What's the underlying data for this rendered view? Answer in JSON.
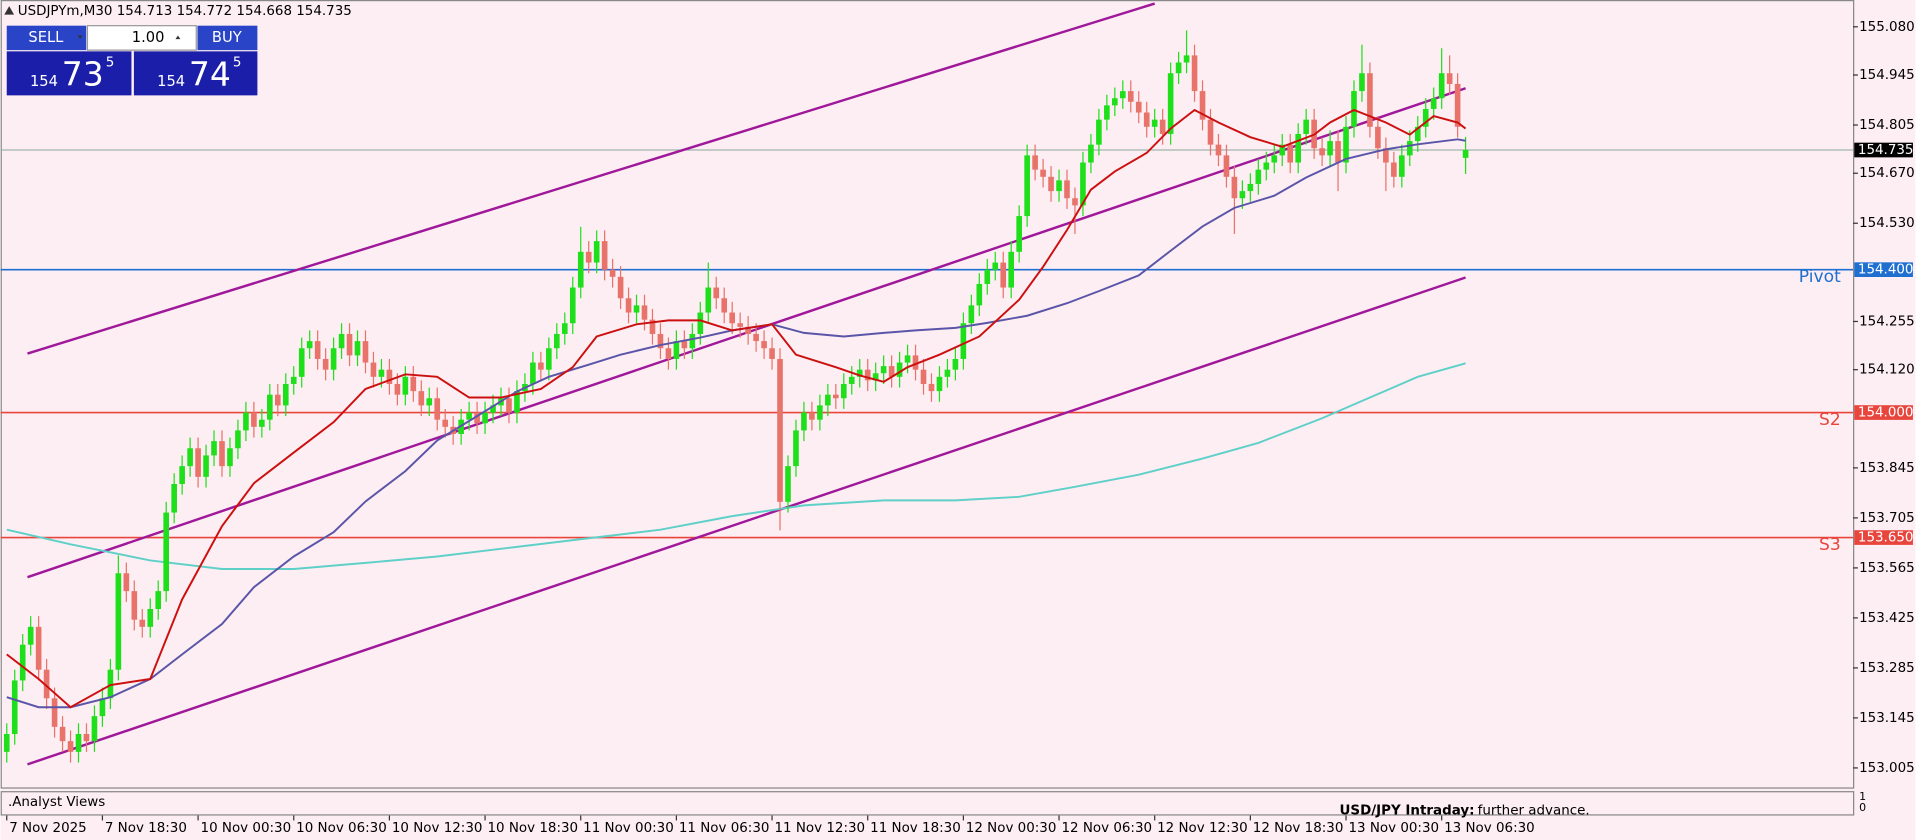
{
  "chart_data": {
    "type": "candlestick",
    "symbol_info": "USDJPYm,M30  154.713 154.772 154.668 154.735",
    "trade_panel": {
      "sell_label": "SELL",
      "buy_label": "BUY",
      "volume": "1.00",
      "bid": {
        "big": "154",
        "main": "73",
        "small": "5"
      },
      "ask": {
        "big": "154",
        "main": "74",
        "small": "5"
      }
    },
    "xlim": [
      -0.77,
      231.6
    ],
    "ylim": [
      152.947,
      155.155
    ],
    "xticks": [
      {
        "value": 0,
        "label": "7 Nov 2025"
      },
      {
        "value": 12,
        "label": "7 Nov 18:30"
      },
      {
        "value": 24,
        "label": "10 Nov 00:30"
      },
      {
        "value": 36,
        "label": "10 Nov 06:30"
      },
      {
        "value": 48,
        "label": "10 Nov 12:30"
      },
      {
        "value": 60,
        "label": "10 Nov 18:30"
      },
      {
        "value": 72,
        "label": "11 Nov 00:30"
      },
      {
        "value": 84,
        "label": "11 Nov 06:30"
      },
      {
        "value": 96,
        "label": "11 Nov 12:30"
      },
      {
        "value": 108,
        "label": "11 Nov 18:30"
      },
      {
        "value": 120,
        "label": "12 Nov 00:30"
      },
      {
        "value": 132,
        "label": "12 Nov 06:30"
      },
      {
        "value": 144,
        "label": "12 Nov 12:30"
      },
      {
        "value": 156,
        "label": "12 Nov 18:30"
      },
      {
        "value": 168,
        "label": "13 Nov 00:30"
      },
      {
        "value": 180,
        "label": "13 Nov 06:30"
      }
    ],
    "yticks": [
      {
        "value": 155.08,
        "label": "155.080"
      },
      154.945,
      154.805,
      {
        "value": 154.67,
        "label": "154.670"
      },
      {
        "value": 154.53,
        "label": "154.530"
      },
      154.255,
      {
        "value": 154.12,
        "label": "154.120"
      },
      153.845,
      153.705,
      153.565,
      153.425,
      153.285,
      153.145,
      153.005
    ],
    "candles": {
      "up_color": "#1ee01a",
      "down_color": "#e8736a",
      "open": [
        153.05,
        153.1,
        153.25,
        153.35,
        153.4,
        153.28,
        153.2,
        153.12,
        153.08,
        153.05,
        153.1,
        153.08,
        153.15,
        153.2,
        153.28,
        153.55,
        153.5,
        153.42,
        153.4,
        153.45,
        153.5,
        153.72,
        153.8,
        153.85,
        153.9,
        153.82,
        153.88,
        153.92,
        153.85,
        153.9,
        153.95,
        154.0,
        153.96,
        153.98,
        154.05,
        154.02,
        154.08,
        154.1,
        154.18,
        154.2,
        154.15,
        154.12,
        154.18,
        154.22,
        154.16,
        154.2,
        154.14,
        154.1,
        154.12,
        154.08,
        154.05,
        154.1,
        154.06,
        154.02,
        154.04,
        153.98,
        153.96,
        153.94,
        153.98,
        154.0,
        153.97,
        154.0,
        154.02,
        154.04,
        154.0,
        154.06,
        154.08,
        154.14,
        154.12,
        154.18,
        154.22,
        154.25,
        154.35,
        154.45,
        154.42,
        154.48,
        154.4,
        154.38,
        154.32,
        154.28,
        154.3,
        154.26,
        154.22,
        154.18,
        154.15,
        154.2,
        154.18,
        154.22,
        154.28,
        154.35,
        154.32,
        154.28,
        154.25,
        154.24,
        154.22,
        154.2,
        154.18,
        154.15,
        153.75,
        153.85,
        153.95,
        154.0,
        153.98,
        154.02,
        154.05,
        154.04,
        154.08,
        154.1,
        154.12,
        154.09,
        154.11,
        154.13,
        154.1,
        154.14,
        154.16,
        154.12,
        154.08,
        154.06,
        154.1,
        154.12,
        154.15,
        154.25,
        154.3,
        154.36,
        154.4,
        154.42,
        154.35,
        154.45,
        154.55,
        154.72,
        154.68,
        154.66,
        154.62,
        154.65,
        154.6,
        154.58,
        154.7,
        154.75,
        154.82,
        154.86,
        154.88,
        154.9,
        154.87,
        154.84,
        154.8,
        154.82,
        154.78,
        154.95,
        154.98,
        155.0,
        154.9,
        154.82,
        154.75,
        154.72,
        154.66,
        154.6,
        154.62,
        154.64,
        154.68,
        154.7,
        154.72,
        154.75,
        154.7,
        154.78,
        154.82,
        154.74,
        154.72,
        154.76,
        154.7,
        154.8,
        154.9,
        154.95,
        154.8,
        154.74,
        154.7,
        154.66,
        154.72,
        154.76,
        154.8,
        154.85,
        154.88,
        154.95,
        154.92,
        154.713
      ],
      "high": [
        153.13,
        153.28,
        153.38,
        153.43,
        153.43,
        153.31,
        153.23,
        153.15,
        153.11,
        153.13,
        153.13,
        153.18,
        153.23,
        153.31,
        153.6,
        153.58,
        153.53,
        153.45,
        153.48,
        153.53,
        153.75,
        153.83,
        153.88,
        153.93,
        153.93,
        153.91,
        153.95,
        153.95,
        153.93,
        153.98,
        154.03,
        154.03,
        154.01,
        154.08,
        154.08,
        154.11,
        154.13,
        154.21,
        154.23,
        154.23,
        154.18,
        154.21,
        154.25,
        154.25,
        154.23,
        154.23,
        154.17,
        154.15,
        154.15,
        154.11,
        154.13,
        154.13,
        154.09,
        154.07,
        154.07,
        154.01,
        153.99,
        154.01,
        154.03,
        154.03,
        154.03,
        154.05,
        154.07,
        154.07,
        154.09,
        154.11,
        154.17,
        154.17,
        154.21,
        154.25,
        154.28,
        154.38,
        154.52,
        154.48,
        154.51,
        154.51,
        154.43,
        154.41,
        154.35,
        154.33,
        154.33,
        154.29,
        154.25,
        154.21,
        154.23,
        154.23,
        154.25,
        154.31,
        154.42,
        154.38,
        154.35,
        154.31,
        154.28,
        154.27,
        154.25,
        154.23,
        154.21,
        154.18,
        153.88,
        153.98,
        154.03,
        154.03,
        154.05,
        154.08,
        154.08,
        154.11,
        154.13,
        154.15,
        154.15,
        154.14,
        154.16,
        154.16,
        154.17,
        154.19,
        154.19,
        154.15,
        154.11,
        154.13,
        154.15,
        154.18,
        154.28,
        154.33,
        154.39,
        154.43,
        154.45,
        154.45,
        154.48,
        154.58,
        154.75,
        154.75,
        154.71,
        154.69,
        154.68,
        154.68,
        154.63,
        154.73,
        154.78,
        154.85,
        154.89,
        154.91,
        154.93,
        154.93,
        154.9,
        154.87,
        154.85,
        154.85,
        154.98,
        155.01,
        155.07,
        155.03,
        154.93,
        154.85,
        154.78,
        154.75,
        154.69,
        154.65,
        154.67,
        154.71,
        154.73,
        154.75,
        154.78,
        154.78,
        154.81,
        154.85,
        154.85,
        154.77,
        154.79,
        154.79,
        154.83,
        154.93,
        155.03,
        154.98,
        154.83,
        154.77,
        154.73,
        154.75,
        154.79,
        154.83,
        154.88,
        154.91,
        155.02,
        155.0,
        154.95,
        154.772
      ],
      "low": [
        153.02,
        153.07,
        153.22,
        153.32,
        153.25,
        153.17,
        153.09,
        153.05,
        153.02,
        153.02,
        153.05,
        153.05,
        153.12,
        153.17,
        153.25,
        153.47,
        153.39,
        153.37,
        153.37,
        153.42,
        153.47,
        153.69,
        153.77,
        153.82,
        153.79,
        153.79,
        153.85,
        153.82,
        153.82,
        153.87,
        153.92,
        153.93,
        153.93,
        153.95,
        153.99,
        153.99,
        154.05,
        154.07,
        154.15,
        154.12,
        154.09,
        154.09,
        154.15,
        154.13,
        154.13,
        154.11,
        154.07,
        154.07,
        154.05,
        154.02,
        154.02,
        154.03,
        153.99,
        153.99,
        153.95,
        153.93,
        153.91,
        153.91,
        153.95,
        153.94,
        153.94,
        153.97,
        153.99,
        153.97,
        153.97,
        154.03,
        154.05,
        154.09,
        154.09,
        154.15,
        154.19,
        154.22,
        154.32,
        154.39,
        154.39,
        154.37,
        154.35,
        154.29,
        154.25,
        154.25,
        154.23,
        154.19,
        154.15,
        154.12,
        154.12,
        154.15,
        154.15,
        154.19,
        154.25,
        154.29,
        154.25,
        154.22,
        154.21,
        154.19,
        154.17,
        154.15,
        154.12,
        153.67,
        153.72,
        153.82,
        153.92,
        153.95,
        153.95,
        153.99,
        154.01,
        154.01,
        154.05,
        154.07,
        154.06,
        154.06,
        154.08,
        154.07,
        154.07,
        154.11,
        154.09,
        154.05,
        154.03,
        154.03,
        154.07,
        154.09,
        154.12,
        154.22,
        154.27,
        154.33,
        154.37,
        154.32,
        154.32,
        154.42,
        154.52,
        154.65,
        154.63,
        154.59,
        154.59,
        154.57,
        154.5,
        154.55,
        154.67,
        154.72,
        154.79,
        154.83,
        154.85,
        154.84,
        154.81,
        154.77,
        154.77,
        154.75,
        154.75,
        154.92,
        154.95,
        154.87,
        154.79,
        154.72,
        154.69,
        154.63,
        154.5,
        154.57,
        154.59,
        154.61,
        154.65,
        154.67,
        154.69,
        154.67,
        154.67,
        154.75,
        154.71,
        154.69,
        154.69,
        154.62,
        154.67,
        154.77,
        154.87,
        154.77,
        154.71,
        154.62,
        154.63,
        154.63,
        154.69,
        154.73,
        154.77,
        154.82,
        154.85,
        154.89,
        154.77,
        154.668
      ],
      "close": [
        153.1,
        153.25,
        153.35,
        153.4,
        153.28,
        153.2,
        153.12,
        153.08,
        153.05,
        153.1,
        153.08,
        153.15,
        153.2,
        153.28,
        153.55,
        153.5,
        153.42,
        153.4,
        153.45,
        153.5,
        153.72,
        153.8,
        153.85,
        153.9,
        153.82,
        153.88,
        153.92,
        153.85,
        153.9,
        153.95,
        154.0,
        153.96,
        153.98,
        154.05,
        154.02,
        154.08,
        154.1,
        154.18,
        154.2,
        154.15,
        154.12,
        154.18,
        154.22,
        154.16,
        154.2,
        154.14,
        154.1,
        154.12,
        154.08,
        154.05,
        154.1,
        154.06,
        154.02,
        154.04,
        153.98,
        153.96,
        153.94,
        153.98,
        154.0,
        153.97,
        154.0,
        154.02,
        154.04,
        154.0,
        154.06,
        154.08,
        154.14,
        154.12,
        154.18,
        154.22,
        154.25,
        154.35,
        154.45,
        154.42,
        154.48,
        154.4,
        154.38,
        154.32,
        154.28,
        154.3,
        154.26,
        154.22,
        154.18,
        154.15,
        154.2,
        154.18,
        154.22,
        154.28,
        154.35,
        154.32,
        154.28,
        154.25,
        154.24,
        154.22,
        154.2,
        154.18,
        154.15,
        153.75,
        153.85,
        153.95,
        154.0,
        153.98,
        154.02,
        154.05,
        154.04,
        154.08,
        154.1,
        154.12,
        154.09,
        154.11,
        154.13,
        154.1,
        154.14,
        154.16,
        154.12,
        154.08,
        154.06,
        154.1,
        154.12,
        154.15,
        154.25,
        154.3,
        154.36,
        154.4,
        154.42,
        154.35,
        154.45,
        154.55,
        154.72,
        154.68,
        154.66,
        154.62,
        154.65,
        154.6,
        154.58,
        154.7,
        154.75,
        154.82,
        154.86,
        154.88,
        154.9,
        154.87,
        154.84,
        154.8,
        154.82,
        154.78,
        154.95,
        154.98,
        155.0,
        154.9,
        154.82,
        154.75,
        154.72,
        154.66,
        154.6,
        154.62,
        154.64,
        154.68,
        154.7,
        154.72,
        154.75,
        154.7,
        154.78,
        154.82,
        154.74,
        154.72,
        154.76,
        154.7,
        154.8,
        154.9,
        154.95,
        154.8,
        154.74,
        154.7,
        154.66,
        154.72,
        154.76,
        154.8,
        154.85,
        154.88,
        154.95,
        154.92,
        154.8,
        154.735
      ]
    },
    "lines": [
      {
        "color": "#5fd0c8",
        "x": [
          0,
          8,
          18,
          27,
          36,
          45,
          54,
          64,
          73,
          82,
          91,
          100,
          110,
          119,
          127,
          134,
          142,
          150,
          157,
          165,
          171,
          177,
          183
        ],
        "values": [
          153.672,
          153.631,
          153.586,
          153.562,
          153.562,
          153.579,
          153.597,
          153.624,
          153.648,
          153.672,
          153.71,
          153.74,
          153.754,
          153.754,
          153.764,
          153.792,
          153.826,
          153.871,
          153.915,
          153.984,
          154.042,
          154.1,
          154.138
        ]
      },
      {
        "color": "#5a55a8",
        "x": [
          0,
          4,
          8,
          13,
          18,
          22,
          27,
          31,
          36,
          41,
          45,
          50,
          54,
          59,
          64,
          68,
          73,
          77,
          82,
          87,
          91,
          96,
          100,
          105,
          110,
          114,
          119,
          123,
          128,
          133,
          137,
          142,
          146,
          150,
          154,
          159,
          163,
          168,
          173,
          177,
          182,
          183
        ],
        "values": [
          153.203,
          153.175,
          153.175,
          153.203,
          153.254,
          153.323,
          153.408,
          153.511,
          153.597,
          153.665,
          153.751,
          153.836,
          153.922,
          153.99,
          154.059,
          154.1,
          154.134,
          154.162,
          154.189,
          154.21,
          154.23,
          154.247,
          154.223,
          154.213,
          154.223,
          154.23,
          154.237,
          154.251,
          154.271,
          154.306,
          154.34,
          154.384,
          154.453,
          154.521,
          154.573,
          154.607,
          154.658,
          154.71,
          154.737,
          154.751,
          154.765,
          154.761
        ]
      },
      {
        "color": "#cc1010",
        "x": [
          0,
          4,
          8,
          13,
          18,
          22,
          27,
          31,
          36,
          41,
          45,
          50,
          54,
          58,
          62,
          67,
          71,
          74,
          79,
          83,
          87,
          91,
          96,
          99,
          104,
          107,
          110,
          113,
          117,
          122,
          127,
          130,
          133,
          136,
          139,
          143,
          146,
          149,
          152,
          156,
          160,
          164,
          166,
          169,
          173,
          176,
          179,
          182,
          183
        ],
        "values": [
          153.323,
          153.254,
          153.175,
          153.237,
          153.254,
          153.477,
          153.682,
          153.802,
          153.888,
          153.973,
          154.066,
          154.107,
          154.1,
          154.042,
          154.042,
          154.066,
          154.127,
          154.213,
          154.247,
          154.258,
          154.258,
          154.23,
          154.247,
          154.162,
          154.127,
          154.104,
          154.086,
          154.127,
          154.162,
          154.213,
          154.316,
          154.408,
          154.511,
          154.624,
          154.675,
          154.727,
          154.795,
          154.847,
          154.812,
          154.771,
          154.744,
          154.778,
          154.812,
          154.847,
          154.812,
          154.778,
          154.83,
          154.812,
          154.795
        ]
      }
    ],
    "channels": [
      {
        "color": "#a0189a",
        "x": [
          2.6,
          144
        ],
        "values": [
          154.165,
          155.145
        ]
      },
      {
        "color": "#a0189a",
        "x": [
          2.6,
          183
        ],
        "values": [
          153.539,
          154.908
        ]
      },
      {
        "color": "#a0189a",
        "x": [
          2.6,
          183
        ],
        "values": [
          153.015,
          154.378
        ]
      }
    ],
    "levels": [
      {
        "name": "Pivot",
        "value": 154.4,
        "value_label": "154.400",
        "color": "#1e6fd0"
      },
      {
        "name": "S2",
        "value": 154.0,
        "value_label": "154.000",
        "color": "#e8453c"
      },
      {
        "name": "S3",
        "value": 153.65,
        "value_label": "153.650",
        "color": "#e8453c"
      }
    ],
    "last_price": 154.735,
    "indicator": {
      "name": ".Analyst Views",
      "annotation_title": "USD/JPY Intraday:",
      "annotation_text": "further advance.",
      "yticks": [
        1,
        0
      ]
    }
  }
}
